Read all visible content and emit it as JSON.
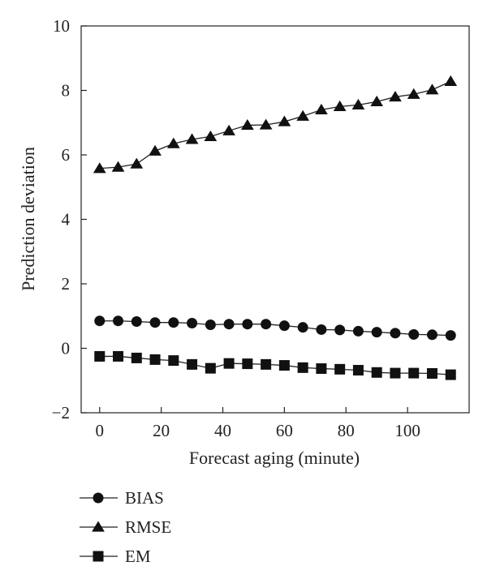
{
  "chart_data": {
    "type": "line",
    "title": "",
    "xlabel": "Forecast aging (minute)",
    "ylabel": "Prediction deviation",
    "xlim": [
      -6,
      120
    ],
    "ylim": [
      -2,
      10
    ],
    "x_ticks": [
      0,
      20,
      40,
      60,
      80,
      100
    ],
    "y_ticks": [
      -2,
      0,
      2,
      4,
      6,
      8,
      10
    ],
    "x_tick_labels": [
      "0",
      "20",
      "40",
      "60",
      "80",
      "100"
    ],
    "y_tick_labels": [
      "−2",
      "0",
      "2",
      "4",
      "6",
      "8",
      "10"
    ],
    "grid": false,
    "legend_position": "bottom-left, below plot",
    "x": [
      0,
      6,
      12,
      18,
      24,
      30,
      36,
      42,
      48,
      54,
      60,
      66,
      72,
      78,
      84,
      90,
      96,
      102,
      108,
      114
    ],
    "series": [
      {
        "name": "BIAS",
        "marker": "circle",
        "values": [
          0.85,
          0.85,
          0.83,
          0.8,
          0.8,
          0.78,
          0.73,
          0.75,
          0.75,
          0.75,
          0.7,
          0.65,
          0.58,
          0.57,
          0.53,
          0.5,
          0.47,
          0.43,
          0.42,
          0.4
        ]
      },
      {
        "name": "RMSE",
        "marker": "triangle",
        "values": [
          5.58,
          5.62,
          5.72,
          6.12,
          6.35,
          6.48,
          6.57,
          6.75,
          6.92,
          6.93,
          7.03,
          7.2,
          7.4,
          7.5,
          7.55,
          7.65,
          7.8,
          7.88,
          8.02,
          8.28
        ]
      },
      {
        "name": "EM",
        "marker": "square",
        "values": [
          -0.25,
          -0.25,
          -0.3,
          -0.35,
          -0.38,
          -0.5,
          -0.62,
          -0.47,
          -0.48,
          -0.5,
          -0.53,
          -0.6,
          -0.63,
          -0.65,
          -0.68,
          -0.75,
          -0.77,
          -0.77,
          -0.78,
          -0.82
        ]
      }
    ],
    "colors": {
      "line": "#222222",
      "marker": "#111111",
      "axis": "#222222"
    }
  }
}
